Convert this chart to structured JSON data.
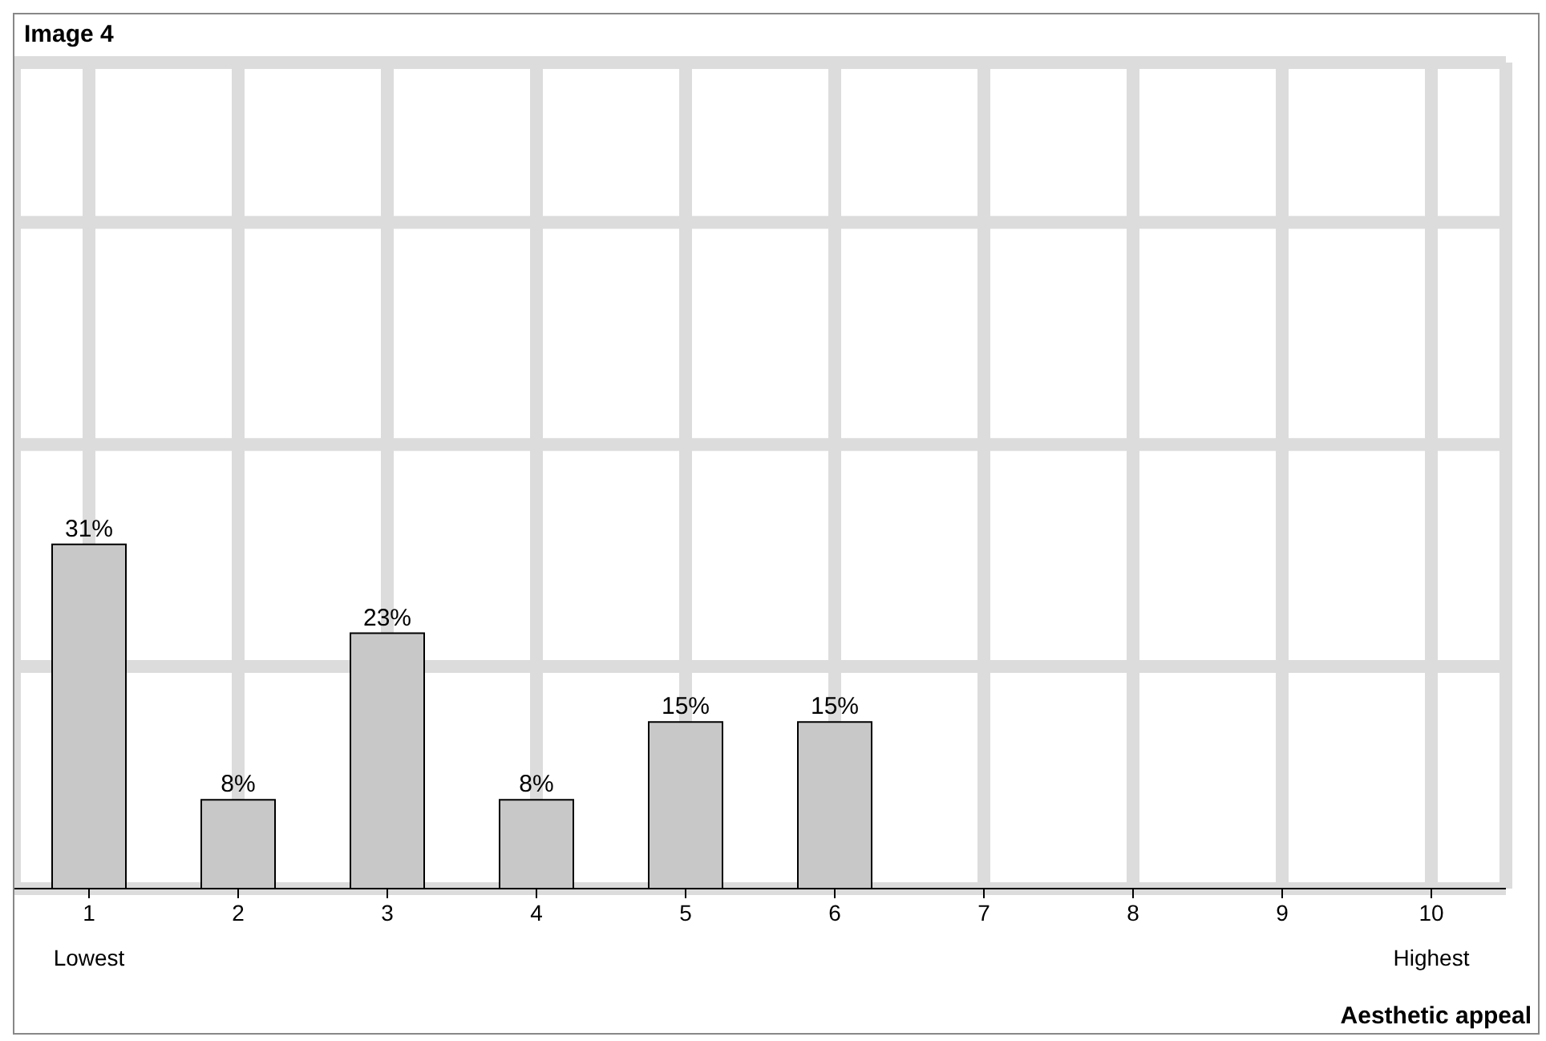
{
  "chart_data": {
    "type": "bar",
    "title": "Image 4",
    "xlabel": "Aesthetic appeal",
    "categories": [
      "1",
      "2",
      "3",
      "4",
      "5",
      "6",
      "7",
      "8",
      "9",
      "10"
    ],
    "values": [
      31,
      8,
      23,
      8,
      15,
      15,
      null,
      null,
      null,
      null
    ],
    "value_labels": [
      "31%",
      "8%",
      "23%",
      "8%",
      "15%",
      "15%",
      null,
      null,
      null,
      null
    ],
    "color": "#c8c8c8",
    "grid": true,
    "annotations": [
      "Lowest",
      "Highest"
    ]
  }
}
